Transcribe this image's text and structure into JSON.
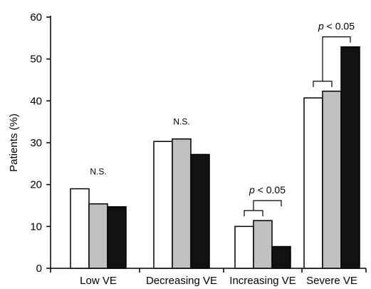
{
  "chart_data": {
    "type": "bar",
    "ylabel": "Patients (%)",
    "xlabel": "",
    "ylim": [
      0,
      60
    ],
    "yticks": [
      0,
      10,
      20,
      30,
      40,
      50,
      60
    ],
    "categories": [
      "Low VE",
      "Decreasing VE",
      "Increasing VE",
      "Severe VE"
    ],
    "series": [
      {
        "color": "#ffffff",
        "values": [
          19.0,
          30.3,
          10.0,
          40.7
        ]
      },
      {
        "color": "#c0c0c0",
        "values": [
          15.4,
          30.9,
          11.4,
          42.3
        ]
      },
      {
        "color": "#111111",
        "values": [
          14.7,
          27.2,
          5.2,
          52.9
        ]
      }
    ],
    "annotations": [
      {
        "category": 0,
        "text": "N.S.",
        "kind": "ns"
      },
      {
        "category": 1,
        "text": "N.S.",
        "kind": "ns"
      },
      {
        "category": 2,
        "text": "p < 0.05",
        "kind": "p"
      },
      {
        "category": 3,
        "text": "p < 0.05",
        "kind": "p"
      }
    ]
  }
}
